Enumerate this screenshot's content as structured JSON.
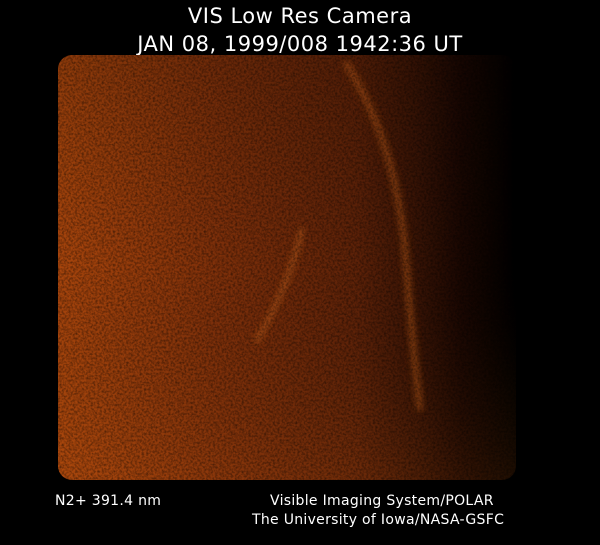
{
  "header": {
    "title": "VIS Low Res Camera",
    "timestamp": "JAN 08, 1999/008 1942:36 UT"
  },
  "image": {
    "description_colors": {
      "bright": "#b0480a",
      "mid": "#6e2a08",
      "dark": "#000000"
    }
  },
  "footer": {
    "filter": "N2+ 391.4 nm",
    "instrument": "Visible Imaging System/POLAR",
    "institution": "The University of Iowa/NASA-GSFC"
  }
}
